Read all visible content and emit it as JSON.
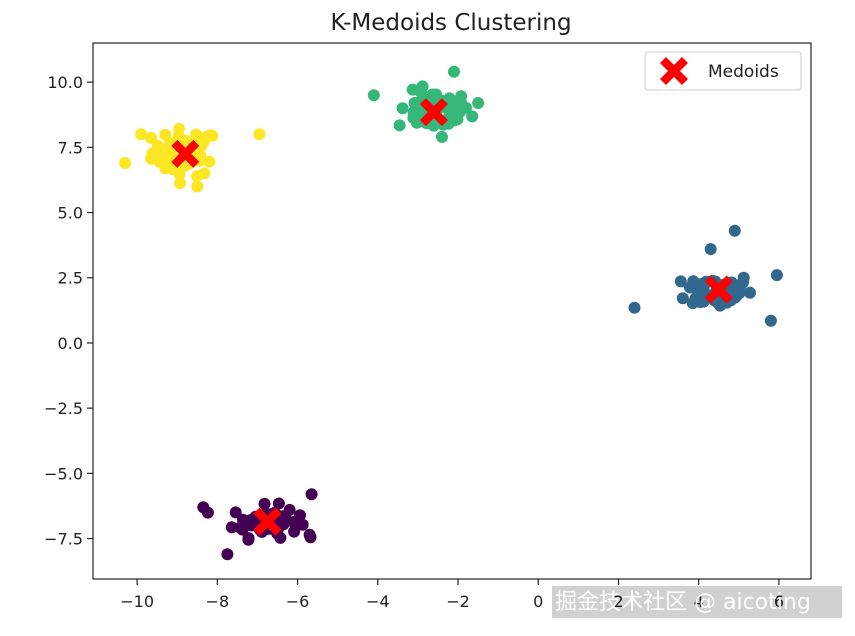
{
  "chart_data": {
    "type": "scatter",
    "title": "K-Medoids Clustering",
    "xlabel": "",
    "ylabel": "",
    "xlim": [
      -11.1,
      6.8
    ],
    "ylim": [
      -9.05,
      11.5
    ],
    "x_ticks": [
      -10,
      -8,
      -6,
      -4,
      -2,
      0,
      2,
      4,
      6
    ],
    "x_tick_labels": [
      "−10",
      "−8",
      "−6",
      "−4",
      "−2",
      "0",
      "2",
      "4",
      "6"
    ],
    "y_ticks": [
      -7.5,
      -5.0,
      -2.5,
      0.0,
      2.5,
      5.0,
      7.5,
      10.0
    ],
    "y_tick_labels": [
      "−7.5",
      "−5.0",
      "−2.5",
      "0.0",
      "2.5",
      "5.0",
      "7.5",
      "10.0"
    ],
    "grid": false,
    "legend_position": "top-right",
    "clusters": [
      {
        "color": "#fde725",
        "center": [
          -8.8,
          7.3
        ],
        "spread": [
          0.55,
          0.6
        ],
        "count": 55,
        "extra_points": [
          [
            -6.95,
            8.0
          ],
          [
            -10.3,
            6.9
          ],
          [
            -8.5,
            6.0
          ],
          [
            -9.9,
            8.0
          ]
        ]
      },
      {
        "color": "#35b779",
        "center": [
          -2.6,
          8.9
        ],
        "spread": [
          0.6,
          0.5
        ],
        "count": 55,
        "extra_points": [
          [
            -4.1,
            9.5
          ],
          [
            -1.5,
            9.2
          ],
          [
            -2.1,
            10.4
          ],
          [
            -2.4,
            7.9
          ]
        ]
      },
      {
        "color": "#31688e",
        "center": [
          4.5,
          2.0
        ],
        "spread": [
          0.55,
          0.45
        ],
        "count": 55,
        "extra_points": [
          [
            2.4,
            1.35
          ],
          [
            4.9,
            4.3
          ],
          [
            4.3,
            3.6
          ],
          [
            5.8,
            0.85
          ],
          [
            5.95,
            2.6
          ]
        ]
      },
      {
        "color": "#440154",
        "center": [
          -6.8,
          -6.85
        ],
        "spread": [
          0.55,
          0.4
        ],
        "count": 55,
        "extra_points": [
          [
            -5.65,
            -5.8
          ],
          [
            -7.75,
            -8.1
          ],
          [
            -5.7,
            -7.35
          ],
          [
            -8.35,
            -6.3
          ]
        ]
      }
    ],
    "medoids": {
      "name": "Medoids",
      "color": "#ff0000",
      "marker": "X",
      "points": [
        [
          -8.8,
          7.25
        ],
        [
          -2.6,
          8.85
        ],
        [
          4.5,
          2.05
        ],
        [
          -6.75,
          -6.85
        ]
      ]
    }
  },
  "watermark": "掘金技术社区 @ aicoting"
}
